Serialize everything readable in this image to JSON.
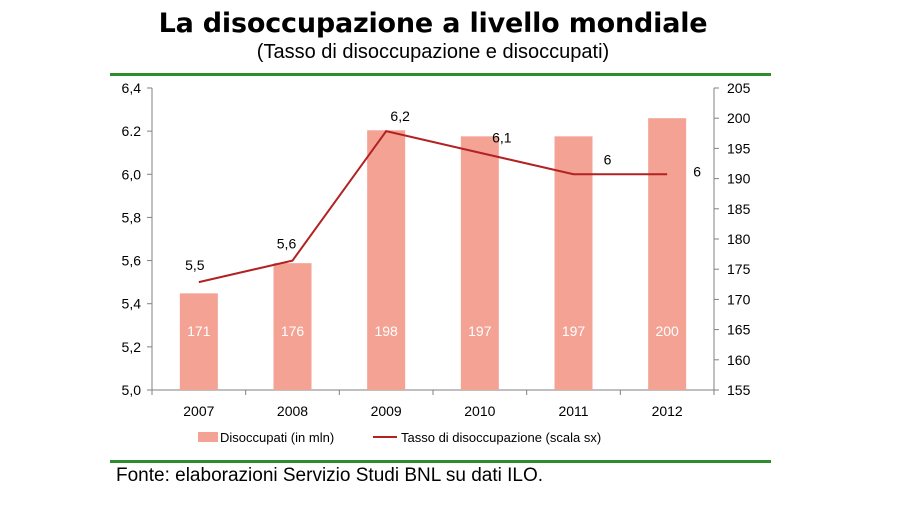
{
  "title": "La disoccupazione a livello mondiale",
  "subtitle": "(Tasso di disoccupazione e disoccupati)",
  "source": "Fonte: elaborazioni Servizio Studi BNL su dati ILO.",
  "colors": {
    "bar": "#f4a294",
    "line": "#b22222",
    "rule": "#2e8b2e",
    "axis": "#808080"
  },
  "chart_data": {
    "type": "bar+line",
    "categories": [
      "2007",
      "2008",
      "2009",
      "2010",
      "2011",
      "2012"
    ],
    "series": [
      {
        "name": "Disoccupati (in mln)",
        "type": "bar",
        "axis": "right",
        "values": [
          171,
          176,
          198,
          197,
          197,
          200
        ],
        "labels": [
          "171",
          "176",
          "198",
          "197",
          "197",
          "200"
        ]
      },
      {
        "name": "Tasso di disoccupazione (scala sx)",
        "type": "line",
        "axis": "left",
        "values": [
          5.5,
          5.6,
          6.2,
          6.1,
          6.0,
          6.0
        ],
        "labels": [
          "5,5",
          "5,6",
          "6,2",
          "6,1",
          "6",
          "6"
        ]
      }
    ],
    "left_axis": {
      "min": 5.0,
      "max": 6.4,
      "ticks": [
        "6,4",
        "6.2",
        "6,0",
        "5,8",
        "5,6",
        "5,4",
        "5,2",
        "5,0"
      ]
    },
    "right_axis": {
      "min": 155,
      "max": 205,
      "ticks": [
        "205",
        "200",
        "195",
        "190",
        "185",
        "180",
        "175",
        "170",
        "165",
        "160",
        "155"
      ]
    },
    "legend_position": "bottom",
    "grid": false
  }
}
